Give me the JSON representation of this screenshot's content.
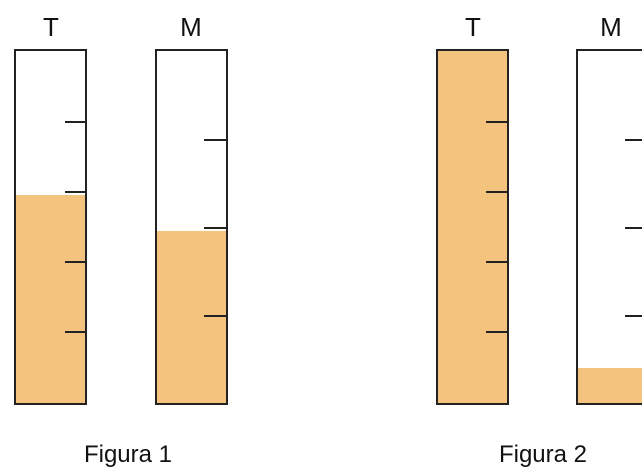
{
  "figures": [
    {
      "caption": "Figura 1",
      "containers": [
        {
          "label": "T",
          "fill_fraction": 0.59,
          "tick_count": 4
        },
        {
          "label": "M",
          "fill_fraction": 0.49,
          "tick_count": 3
        }
      ]
    },
    {
      "caption": "Figura 2",
      "containers": [
        {
          "label": "T",
          "fill_fraction": 1.0,
          "tick_count": 4
        },
        {
          "label": "M",
          "fill_fraction": 0.1,
          "tick_count": 3
        }
      ]
    }
  ],
  "colors": {
    "liquid": "#f4c47e",
    "outline": "#222222",
    "empty": "#ffffff"
  }
}
